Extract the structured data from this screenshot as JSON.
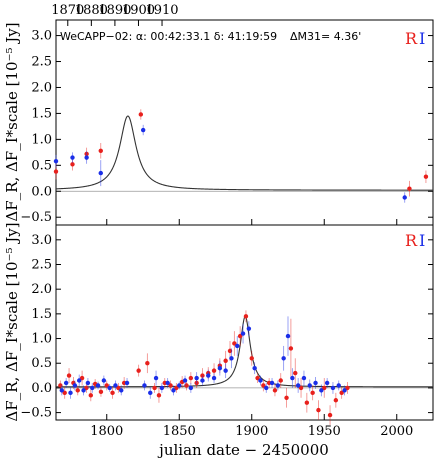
{
  "chart_data": [
    {
      "type": "scatter",
      "title": "WeCAPP−02:   α: 00:42:33.1   δ: 41:19:59",
      "title_extra": "ΔM31= 4.36'",
      "ylabel": "ΔF_R, ΔF_I*scale [10⁻⁵ Jy]",
      "top_axis_ticks": [
        "1870",
        "1880",
        "1890",
        "1900",
        "1910"
      ],
      "top_axis_values": [
        1870,
        1880,
        1890,
        1900,
        1910
      ],
      "xlim": [
        1865,
        2025
      ],
      "ylim": [
        -0.65,
        3.3
      ],
      "yticks": [
        -0.5,
        0.0,
        0.5,
        1.0,
        1.5,
        2.0,
        2.5,
        3.0
      ],
      "ytick_labels": [
        "−0.5",
        "0.0",
        "0.5",
        "1.0",
        "1.5",
        "2.0",
        "2.5",
        "3.0"
      ],
      "legend": [
        "R",
        "I"
      ],
      "legend_placement": "top-right",
      "colors": {
        "R": "#e8201c",
        "I": "#1a2ee8",
        "model": "#333333"
      },
      "model": {
        "peak_x": 1895.5,
        "peak_y": 1.45,
        "base": 0.02,
        "width": 4.2
      },
      "series": [
        {
          "name": "R",
          "points": [
            [
              1791,
              0.18,
              0.08
            ],
            [
              1798,
              0.05,
              0.08
            ],
            [
              1812,
              0.02,
              0.06
            ],
            [
              1832,
              0.05,
              0.12
            ],
            [
              1858,
              0.4,
              0.15
            ],
            [
              1865,
              0.38,
              0.15
            ],
            [
              1872,
              0.52,
              0.12
            ],
            [
              1878,
              0.72,
              0.12
            ],
            [
              1884,
              0.78,
              0.15
            ],
            [
              1901,
              1.48,
              0.1
            ],
            [
              2015,
              0.05,
              0.15
            ],
            [
              2022,
              0.28,
              0.12
            ]
          ]
        },
        {
          "name": "I",
          "points": [
            [
              1791,
              -0.2,
              0.1
            ],
            [
              1796,
              0.0,
              0.1
            ],
            [
              1803,
              0.08,
              0.08
            ],
            [
              1812,
              0.42,
              0.1
            ],
            [
              1832,
              0.05,
              0.08
            ],
            [
              1834,
              -0.35,
              0.3
            ],
            [
              1858,
              -0.12,
              0.12
            ],
            [
              1865,
              0.58,
              0.12
            ],
            [
              1872,
              0.65,
              0.1
            ],
            [
              1878,
              0.65,
              0.12
            ],
            [
              1884,
              0.35,
              0.25
            ],
            [
              1902,
              1.18,
              0.1
            ],
            [
              2013,
              -0.12,
              0.1
            ]
          ]
        }
      ]
    },
    {
      "type": "scatter",
      "xlabel": "julian date − 2450000",
      "ylabel": "ΔF_R, ΔF_I*scale [10⁻⁵ Jy]",
      "xlim": [
        1765,
        2025
      ],
      "xticks": [
        1800,
        1850,
        1900,
        1950,
        2000
      ],
      "xtick_labels": [
        "1800",
        "1850",
        "1900",
        "1950",
        "2000"
      ],
      "ylim": [
        -0.65,
        3.3
      ],
      "yticks": [
        -0.5,
        0.0,
        0.5,
        1.0,
        1.5,
        2.0,
        2.5,
        3.0
      ],
      "ytick_labels": [
        "−0.5",
        "0.0",
        "0.5",
        "1.0",
        "1.5",
        "2.0",
        "2.5",
        "3.0"
      ],
      "legend": [
        "R",
        "I"
      ],
      "legend_placement": "top-right",
      "colors": {
        "R": "#e8201c",
        "I": "#1a2ee8",
        "model": "#333333"
      },
      "model": {
        "peak_x": 1895.5,
        "peak_y": 1.45,
        "base": 0.02,
        "width": 4.2
      },
      "series": [
        {
          "name": "R",
          "points": [
            [
              1768,
              0.05,
              0.1
            ],
            [
              1771,
              -0.1,
              0.12
            ],
            [
              1774,
              0.25,
              0.15
            ],
            [
              1777,
              0.1,
              0.12
            ],
            [
              1780,
              -0.05,
              0.1
            ],
            [
              1783,
              0.2,
              0.15
            ],
            [
              1786,
              0.0,
              0.1
            ],
            [
              1789,
              -0.15,
              0.12
            ],
            [
              1792,
              0.08,
              0.1
            ],
            [
              1796,
              -0.08,
              0.1
            ],
            [
              1800,
              0.05,
              0.1
            ],
            [
              1804,
              -0.1,
              0.12
            ],
            [
              1808,
              0.0,
              0.1
            ],
            [
              1812,
              0.1,
              0.12
            ],
            [
              1822,
              0.35,
              0.12
            ],
            [
              1828,
              0.5,
              0.2
            ],
            [
              1833,
              0.0,
              0.1
            ],
            [
              1836,
              -0.15,
              0.15
            ],
            [
              1840,
              0.1,
              0.1
            ],
            [
              1844,
              0.05,
              0.1
            ],
            [
              1848,
              0.0,
              0.1
            ],
            [
              1852,
              0.12,
              0.12
            ],
            [
              1855,
              0.05,
              0.1
            ],
            [
              1858,
              0.2,
              0.12
            ],
            [
              1862,
              0.1,
              0.1
            ],
            [
              1866,
              0.25,
              0.15
            ],
            [
              1870,
              0.3,
              0.12
            ],
            [
              1874,
              0.35,
              0.15
            ],
            [
              1878,
              0.45,
              0.15
            ],
            [
              1882,
              0.55,
              0.2
            ],
            [
              1885,
              0.75,
              0.2
            ],
            [
              1888,
              0.9,
              0.25
            ],
            [
              1892,
              1.05,
              0.2
            ],
            [
              1896,
              1.45,
              0.12
            ],
            [
              1900,
              0.6,
              0.15
            ],
            [
              1904,
              0.2,
              0.1
            ],
            [
              1908,
              0.05,
              0.12
            ],
            [
              1912,
              0.1,
              0.1
            ],
            [
              1916,
              -0.05,
              0.12
            ],
            [
              1920,
              0.15,
              0.15
            ],
            [
              1924,
              -0.2,
              0.2
            ],
            [
              1927,
              0.8,
              0.6
            ],
            [
              1930,
              0.3,
              0.3
            ],
            [
              1934,
              0.0,
              0.2
            ],
            [
              1938,
              -0.3,
              0.2
            ],
            [
              1942,
              -0.1,
              0.15
            ],
            [
              1946,
              -0.45,
              0.2
            ],
            [
              1950,
              0.0,
              0.2
            ],
            [
              1954,
              -0.55,
              0.2
            ],
            [
              1958,
              -0.25,
              0.15
            ],
            [
              1962,
              -0.1,
              0.12
            ],
            [
              1966,
              0.0,
              0.12
            ]
          ]
        },
        {
          "name": "I",
          "points": [
            [
              1769,
              -0.05,
              0.1
            ],
            [
              1772,
              0.1,
              0.1
            ],
            [
              1775,
              -0.1,
              0.12
            ],
            [
              1778,
              0.05,
              0.1
            ],
            [
              1781,
              0.15,
              0.12
            ],
            [
              1784,
              -0.05,
              0.1
            ],
            [
              1787,
              0.1,
              0.1
            ],
            [
              1790,
              0.0,
              0.1
            ],
            [
              1794,
              0.05,
              0.08
            ],
            [
              1798,
              0.15,
              0.1
            ],
            [
              1802,
              0.0,
              0.08
            ],
            [
              1806,
              0.05,
              0.1
            ],
            [
              1810,
              -0.05,
              0.1
            ],
            [
              1814,
              0.1,
              0.1
            ],
            [
              1826,
              0.05,
              0.1
            ],
            [
              1830,
              -0.1,
              0.12
            ],
            [
              1834,
              0.2,
              0.15
            ],
            [
              1838,
              0.0,
              0.1
            ],
            [
              1842,
              0.1,
              0.1
            ],
            [
              1846,
              -0.05,
              0.1
            ],
            [
              1850,
              0.05,
              0.08
            ],
            [
              1854,
              0.15,
              0.1
            ],
            [
              1858,
              0.0,
              0.1
            ],
            [
              1862,
              0.2,
              0.12
            ],
            [
              1866,
              0.15,
              0.1
            ],
            [
              1870,
              0.25,
              0.12
            ],
            [
              1874,
              0.2,
              0.1
            ],
            [
              1878,
              0.4,
              0.15
            ],
            [
              1882,
              0.35,
              0.15
            ],
            [
              1886,
              0.6,
              0.2
            ],
            [
              1890,
              0.85,
              0.2
            ],
            [
              1894,
              1.1,
              0.2
            ],
            [
              1898,
              1.2,
              0.15
            ],
            [
              1902,
              0.4,
              0.12
            ],
            [
              1906,
              0.15,
              0.1
            ],
            [
              1910,
              0.0,
              0.1
            ],
            [
              1914,
              0.1,
              0.1
            ],
            [
              1918,
              0.05,
              0.1
            ],
            [
              1922,
              0.6,
              0.25
            ],
            [
              1925,
              1.05,
              0.4
            ],
            [
              1928,
              0.2,
              0.2
            ],
            [
              1932,
              0.05,
              0.15
            ],
            [
              1936,
              0.2,
              0.15
            ],
            [
              1940,
              0.05,
              0.12
            ],
            [
              1944,
              0.1,
              0.12
            ],
            [
              1948,
              -0.05,
              0.12
            ],
            [
              1952,
              0.1,
              0.1
            ],
            [
              1956,
              0.0,
              0.12
            ],
            [
              1960,
              0.05,
              0.1
            ],
            [
              1964,
              -0.05,
              0.1
            ]
          ]
        }
      ]
    }
  ]
}
